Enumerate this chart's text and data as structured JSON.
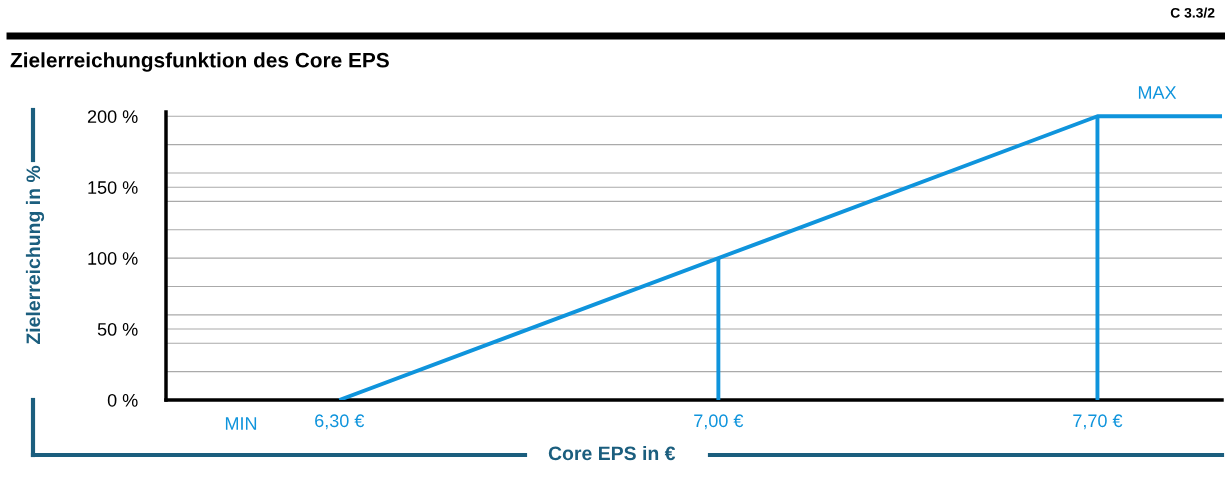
{
  "chart_data": {
    "type": "line",
    "title": "Zielerreichungsfunktion des Core EPS",
    "xlabel": "Core EPS in €",
    "ylabel": "Zielerreichung in %",
    "xlim": [
      5.98,
      7.93
    ],
    "xticks": [
      {
        "value": 6.3,
        "label": "6,30 €"
      },
      {
        "value": 7.0,
        "label": "7,00 €"
      },
      {
        "value": 7.7,
        "label": "7,70 €"
      }
    ],
    "ylim": [
      0,
      203
    ],
    "yticks": [
      {
        "value": 0,
        "label": "0 %"
      },
      {
        "value": 20,
        "label": null
      },
      {
        "value": 40,
        "label": null
      },
      {
        "value": 50,
        "label": "50 %"
      },
      {
        "value": 60,
        "label": null
      },
      {
        "value": 80,
        "label": null
      },
      {
        "value": 100,
        "label": "100 %"
      },
      {
        "value": 120,
        "label": null
      },
      {
        "value": 140,
        "label": null
      },
      {
        "value": 150,
        "label": "150 %"
      },
      {
        "value": 160,
        "label": null
      },
      {
        "value": 180,
        "label": null
      },
      {
        "value": 200,
        "label": "200 %"
      }
    ],
    "grid": "y",
    "marker": "none",
    "line_style": "solid",
    "series": [
      {
        "color": "#0f94dc",
        "x": [
          6.3,
          7.7,
          7.93
        ],
        "values": [
          0,
          200,
          200
        ]
      },
      {
        "color": "#0f94dc",
        "x": [
          7.0,
          7.0
        ],
        "values": [
          0,
          100
        ]
      },
      {
        "color": "#0f94dc",
        "x": [
          7.7,
          7.7
        ],
        "values": [
          0,
          200
        ]
      }
    ],
    "annotations": [
      "C 3.3/2",
      "MIN",
      {
        "text": "MAX",
        "x": 7.81,
        "y": 200
      }
    ]
  }
}
